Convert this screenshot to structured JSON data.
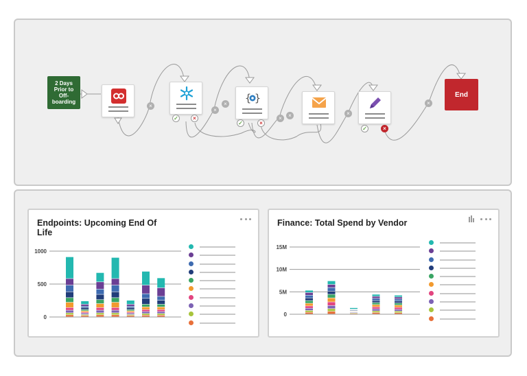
{
  "workflow": {
    "start_label": "2 Days Prior to Off-boarding",
    "end_label": "End",
    "steps": [
      {
        "name": "lastpass-step",
        "icon": "infinity-icon",
        "badges": []
      },
      {
        "name": "jira-step",
        "icon": "snowflake-icon",
        "badges": [
          "ok",
          "no"
        ]
      },
      {
        "name": "webhook-step",
        "icon": "code-gear-icon",
        "badges": [
          "ok",
          "no"
        ]
      },
      {
        "name": "email-step",
        "icon": "envelope-icon",
        "badges": []
      },
      {
        "name": "edit-step",
        "icon": "pencil-icon",
        "badges": [
          "ok",
          "no-filled"
        ]
      }
    ]
  },
  "colors": {
    "start": "#2f6b34",
    "end": "#c1272d",
    "series": [
      "#e8703a",
      "#a8c43c",
      "#7c62b4",
      "#e2457f",
      "#f29a2e",
      "#3aa564",
      "#213d7a",
      "#3e6bb0",
      "#6b3f94",
      "#23b8b0"
    ]
  },
  "endpoints_card": {
    "title": "Endpoints: Upcoming End Of Life",
    "chart_data": {
      "type": "bar",
      "stacked": true,
      "yticks": [
        "0",
        "500",
        "1000"
      ],
      "ylim": [
        0,
        1000
      ],
      "series": [
        {
          "values": [
            30,
            20,
            30,
            30,
            20,
            25,
            25
          ]
        },
        {
          "values": [
            30,
            15,
            30,
            30,
            15,
            25,
            25
          ]
        },
        {
          "values": [
            40,
            20,
            40,
            40,
            20,
            30,
            30
          ]
        },
        {
          "values": [
            40,
            15,
            40,
            40,
            15,
            30,
            30
          ]
        },
        {
          "values": [
            80,
            20,
            60,
            80,
            20,
            40,
            40
          ]
        },
        {
          "values": [
            70,
            20,
            60,
            70,
            20,
            40,
            40
          ]
        },
        {
          "values": [
            90,
            30,
            80,
            90,
            30,
            90,
            60
          ]
        },
        {
          "values": [
            100,
            20,
            80,
            100,
            20,
            70,
            60
          ]
        },
        {
          "values": [
            100,
            30,
            110,
            100,
            30,
            130,
            130
          ]
        },
        {
          "values": [
            330,
            50,
            140,
            320,
            60,
            210,
            150
          ]
        }
      ]
    }
  },
  "finance_card": {
    "title": "Finance: Total Spend by Vendor",
    "chart_data": {
      "type": "bar",
      "stacked": true,
      "yticks": [
        "0",
        "5M",
        "10M",
        "15M"
      ],
      "ylim": [
        0,
        15
      ],
      "series": [
        {
          "values": [
            0.4,
            0.6,
            0.15,
            0.35,
            0.3
          ]
        },
        {
          "values": [
            0.4,
            0.6,
            0.15,
            0.35,
            0.35
          ]
        },
        {
          "values": [
            0.5,
            0.7,
            0.15,
            0.45,
            0.4
          ]
        },
        {
          "values": [
            0.5,
            0.8,
            0.1,
            0.45,
            0.45
          ]
        },
        {
          "values": [
            0.6,
            0.9,
            0.1,
            0.5,
            0.5
          ]
        },
        {
          "values": [
            0.6,
            0.8,
            0.1,
            0.45,
            0.45
          ]
        },
        {
          "values": [
            0.6,
            0.7,
            0.15,
            0.45,
            0.45
          ]
        },
        {
          "values": [
            0.6,
            0.8,
            0.1,
            0.5,
            0.45
          ]
        },
        {
          "values": [
            0.6,
            0.7,
            0.1,
            0.45,
            0.45
          ]
        },
        {
          "values": [
            0.5,
            0.8,
            0.3,
            0.45,
            0.4
          ]
        }
      ]
    }
  }
}
